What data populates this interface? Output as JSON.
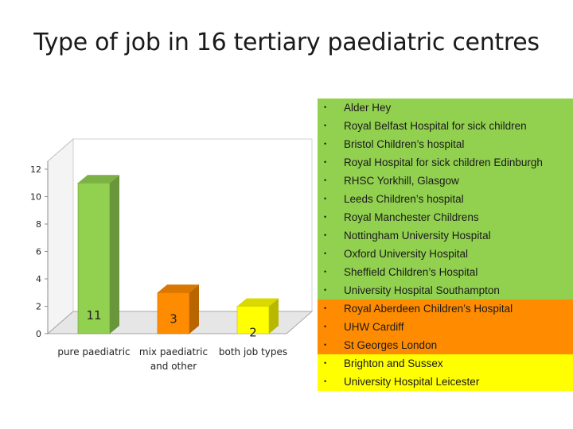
{
  "title": "Type of job in 16 tertiary paediatric centres",
  "colors": {
    "green": "#92d050",
    "orange": "#ff8c00",
    "yellow": "#ffff00"
  },
  "chart_data": {
    "type": "bar",
    "title": "",
    "categories": [
      "pure paediatric",
      "mix paediatric and other",
      "both job types"
    ],
    "category_lines": [
      [
        "pure paediatric"
      ],
      [
        "mix paediatric",
        "and other"
      ],
      [
        "both job types"
      ]
    ],
    "values": [
      11,
      3,
      2
    ],
    "data_labels": [
      "11",
      "3",
      "2"
    ],
    "bar_colors": [
      "#92d050",
      "#ff8c00",
      "#ffff00"
    ],
    "ylim": [
      0,
      12
    ],
    "yticks": [
      "0",
      "2",
      "4",
      "6",
      "8",
      "10",
      "12"
    ],
    "grid": false,
    "style": "3d"
  },
  "legend": {
    "groups": [
      {
        "color": "#92d050",
        "items": [
          "Alder Hey",
          "Royal Belfast Hospital for sick children",
          "Bristol Children’s hospital",
          "Royal Hospital for sick children Edinburgh",
          "RHSC Yorkhill, Glasgow",
          "Leeds Children’s hospital",
          "Royal Manchester Childrens",
          "Nottingham University Hospital",
          "Oxford University Hospital",
          "Sheffield Children’s Hospital",
          "University Hospital Southampton"
        ]
      },
      {
        "color": "#ff8c00",
        "items": [
          "Royal Aberdeen Children’s Hospital",
          "UHW Cardiff",
          "St Georges London"
        ]
      },
      {
        "color": "#ffff00",
        "items": [
          "Brighton and Sussex",
          "University Hospital Leicester"
        ]
      }
    ]
  }
}
